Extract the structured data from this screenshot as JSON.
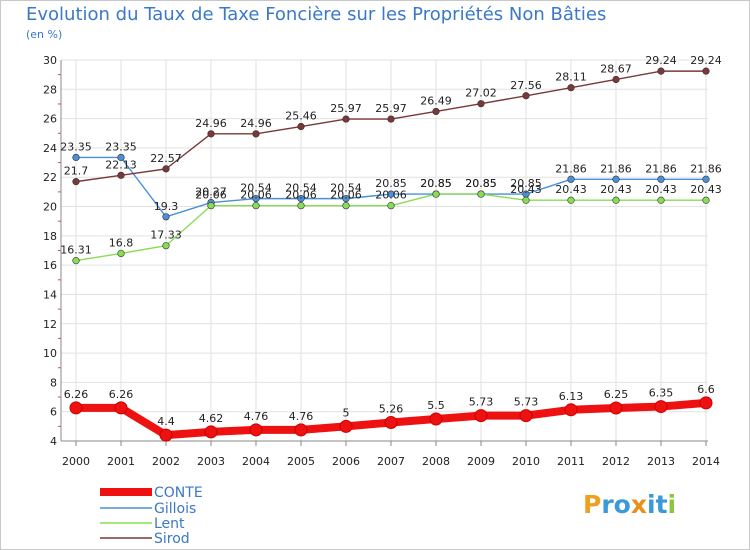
{
  "title": "Evolution du Taux de Taxe Foncière sur les Propriétés Non Bâties",
  "subtitle": "(en %)",
  "logo": {
    "text": "Proxiti",
    "letters": [
      "P",
      "r",
      "o",
      "x",
      "i",
      "t",
      "i"
    ],
    "colors": [
      "#f0a020",
      "#3a9ad8",
      "#3a9ad8",
      "#e8901a",
      "#3a9ad8",
      "#3a9ad8",
      "#8cc63f"
    ]
  },
  "chart_data": {
    "type": "line",
    "title": "Evolution du Taux de Taxe Foncière sur les Propriétés Non Bâties",
    "ylabel": "(en %)",
    "xlabel": "",
    "ylim": [
      4,
      30
    ],
    "yticks": [
      4,
      6,
      8,
      10,
      12,
      14,
      16,
      18,
      20,
      22,
      24,
      26,
      28,
      30
    ],
    "categories": [
      "2000",
      "2001",
      "2002",
      "2003",
      "2004",
      "2005",
      "2006",
      "2007",
      "2008",
      "2009",
      "2010",
      "2011",
      "2012",
      "2013",
      "2014"
    ],
    "series": [
      {
        "name": "CONTE",
        "color": "#ee1111",
        "values": [
          6.26,
          6.26,
          4.4,
          4.62,
          4.76,
          4.76,
          5,
          5.26,
          5.5,
          5.73,
          5.73,
          6.13,
          6.25,
          6.35,
          6.6
        ],
        "labels": [
          "6.26",
          "6.26",
          "4.4",
          "4.62",
          "4.76",
          "4.76",
          "5",
          "5.26",
          "5.5",
          "5.73",
          "5.73",
          "6.13",
          "6.25",
          "6.35",
          "6.6"
        ]
      },
      {
        "name": "Gillois",
        "color": "#4a90d9",
        "values": [
          23.35,
          23.35,
          19.3,
          20.27,
          20.54,
          20.54,
          20.54,
          20.85,
          20.85,
          20.85,
          20.85,
          21.86,
          21.86,
          21.86,
          21.86
        ],
        "labels": [
          "23.35",
          "23.35",
          "19.3",
          "20.27",
          "20.54",
          "20.54",
          "20.54",
          "20.85",
          "20.85",
          "20.85",
          "20.85",
          "21.86",
          "21.86",
          "21.86",
          "21.86"
        ]
      },
      {
        "name": "Lent",
        "color": "#88dd55",
        "values": [
          16.31,
          16.8,
          17.33,
          20.06,
          20.06,
          20.06,
          20.06,
          20.06,
          20.85,
          20.85,
          20.43,
          20.43,
          20.43,
          20.43,
          20.43
        ],
        "labels": [
          "16.31",
          "16.8",
          "17.33",
          "20.06",
          "20.06",
          "20.06",
          "20.06",
          "20.06",
          "20.85",
          "20.85",
          "20.43",
          "20.43",
          "20.43",
          "20.43",
          "20.43"
        ]
      },
      {
        "name": "Sirod",
        "color": "#7a3838",
        "values": [
          21.7,
          22.13,
          22.57,
          24.96,
          24.96,
          25.46,
          25.97,
          25.97,
          26.49,
          27.02,
          27.56,
          28.11,
          28.67,
          29.24,
          29.24
        ],
        "labels": [
          "21.7",
          "22.13",
          "22.57",
          "24.96",
          "24.96",
          "25.46",
          "25.97",
          "25.97",
          "26.49",
          "27.02",
          "27.56",
          "28.11",
          "28.67",
          "29.24",
          "29.24"
        ]
      }
    ]
  }
}
